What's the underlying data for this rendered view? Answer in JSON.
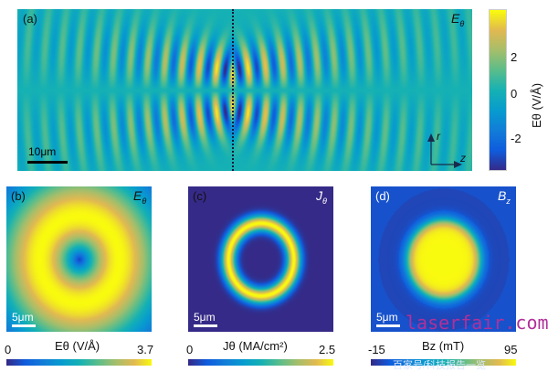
{
  "chart_data": [
    {
      "type": "heatmap",
      "panel": "(a)",
      "field_label": "Eθ",
      "colorbar": {
        "label": "Eθ (V/Å)",
        "range": [
          -3.5,
          3.5
        ],
        "ticks": [
          "2",
          "0",
          "-2"
        ]
      },
      "scale_bar": "10μm",
      "axes": {
        "r": "r",
        "z": "z"
      },
      "colormap": "parula"
    },
    {
      "type": "heatmap",
      "panel": "(b)",
      "field_label": "Eθ",
      "colorbar": {
        "label": "Eθ (V/Å)",
        "range": [
          0,
          3.7
        ],
        "min_label": "0",
        "max_label": "3.7"
      },
      "scale_bar": "5μm",
      "colormap": "parula"
    },
    {
      "type": "heatmap",
      "panel": "(c)",
      "field_label": "Jθ",
      "colorbar": {
        "label": "Jθ (MA/cm²)",
        "range": [
          0,
          2.5
        ],
        "min_label": "0",
        "max_label": "2.5"
      },
      "scale_bar": "5μm",
      "colormap": "parula"
    },
    {
      "type": "heatmap",
      "panel": "(d)",
      "field_label": "Bz",
      "colorbar": {
        "label": "Bz (mT)",
        "range": [
          -15,
          95
        ],
        "min_label": "-15",
        "max_label": "95"
      },
      "scale_bar": "5μm",
      "colormap": "parula"
    }
  ],
  "labels": {
    "a": "(a)",
    "b": "(b)",
    "c": "(c)",
    "d": "(d)",
    "a_field": "E",
    "a_field_sub": "θ",
    "b_field": "E",
    "b_field_sub": "θ",
    "c_field": "J",
    "c_field_sub": "θ",
    "d_field": "B",
    "d_field_sub": "z",
    "a_scale": "10μm",
    "small_scale": "5μm",
    "r_axis": "r",
    "z_axis": "z",
    "a_cb_label": "Eθ (V/Å)",
    "a_cb_ticks": [
      "2",
      "0",
      "-2"
    ],
    "b_cb_label": "Eθ (V/Å)",
    "b_cb_min": "0",
    "b_cb_max": "3.7",
    "c_cb_label": "Jθ (MA/cm²)",
    "c_cb_min": "0",
    "c_cb_max": "2.5",
    "d_cb_label": "Bz (mT)",
    "d_cb_min": "-15",
    "d_cb_max": "95"
  },
  "watermark": {
    "text": "laserfair.com",
    "text2": "百家号/科技报告一览"
  }
}
